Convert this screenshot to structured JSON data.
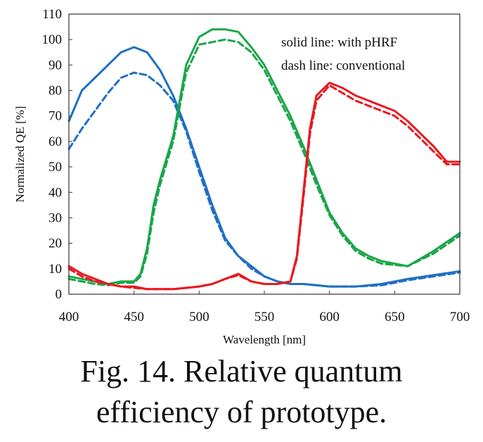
{
  "chart_data": {
    "type": "line",
    "xlabel": "Wavelength [nm]",
    "ylabel": "Normalized QE [%]",
    "xlim": [
      400,
      700
    ],
    "ylim": [
      0,
      110
    ],
    "x_ticks": [
      400,
      450,
      500,
      550,
      600,
      650,
      700
    ],
    "y_ticks": [
      0,
      10,
      20,
      30,
      40,
      50,
      60,
      70,
      80,
      90,
      100,
      110
    ],
    "grid": false,
    "annotations": [
      "solid line: with pHRF",
      "dash line: conventional"
    ],
    "colors": {
      "blue": "#1f6fc5",
      "green": "#1aa64a",
      "red": "#e8191f"
    },
    "series": [
      {
        "color": "blue",
        "style": "solid",
        "x": [
          400,
          410,
          420,
          430,
          440,
          450,
          460,
          470,
          480,
          490,
          500,
          510,
          520,
          530,
          540,
          550,
          560,
          570,
          580,
          590,
          600,
          620,
          640,
          660,
          680,
          700
        ],
        "y": [
          68,
          80,
          85,
          90,
          95,
          97,
          95,
          88,
          78,
          65,
          50,
          35,
          22,
          15,
          11,
          7,
          5,
          4,
          4,
          3.5,
          3,
          3,
          4,
          6,
          7.5,
          9
        ]
      },
      {
        "color": "blue",
        "style": "dash",
        "x": [
          400,
          410,
          420,
          430,
          440,
          450,
          460,
          470,
          480,
          490,
          500,
          510,
          520,
          530,
          540,
          550,
          560,
          570,
          580,
          590,
          600,
          620,
          640,
          660,
          680,
          700
        ],
        "y": [
          57,
          65,
          72,
          79,
          85,
          87,
          86,
          82,
          76,
          64,
          48,
          33,
          21,
          15,
          10,
          7,
          5,
          4,
          4,
          3.5,
          3,
          3,
          3.5,
          5.5,
          7,
          8.5
        ]
      },
      {
        "color": "green",
        "style": "solid",
        "x": [
          400,
          410,
          420,
          430,
          440,
          450,
          455,
          460,
          465,
          470,
          480,
          490,
          500,
          510,
          520,
          530,
          540,
          550,
          560,
          570,
          580,
          590,
          600,
          610,
          620,
          630,
          640,
          660,
          680,
          700
        ],
        "y": [
          7,
          6,
          5,
          4,
          5,
          5,
          8,
          18,
          35,
          45,
          62,
          90,
          101,
          104,
          104,
          103,
          97,
          90,
          80,
          70,
          58,
          45,
          32,
          24,
          18,
          15,
          13,
          11,
          17,
          24
        ]
      },
      {
        "color": "green",
        "style": "dash",
        "x": [
          400,
          410,
          420,
          430,
          440,
          450,
          455,
          460,
          465,
          470,
          480,
          490,
          500,
          510,
          520,
          530,
          540,
          550,
          560,
          570,
          580,
          590,
          600,
          610,
          620,
          630,
          640,
          660,
          680,
          700
        ],
        "y": [
          6,
          5,
          4,
          3.5,
          4.5,
          4.5,
          7,
          16,
          32,
          43,
          60,
          87,
          98,
          99,
          100,
          99,
          95,
          88,
          78,
          68,
          56,
          43,
          31,
          23,
          17,
          14,
          12,
          11,
          16,
          23
        ]
      },
      {
        "color": "red",
        "style": "solid",
        "x": [
          400,
          410,
          420,
          430,
          440,
          450,
          460,
          470,
          480,
          490,
          500,
          510,
          520,
          530,
          540,
          550,
          560,
          570,
          575,
          580,
          585,
          590,
          600,
          610,
          620,
          630,
          640,
          650,
          660,
          670,
          680,
          690,
          700
        ],
        "y": [
          11,
          8,
          6,
          4,
          3,
          3,
          2,
          2,
          2,
          2.5,
          3,
          4,
          6,
          8,
          5,
          4,
          4,
          5,
          15,
          40,
          65,
          78,
          83,
          81,
          78,
          76,
          74,
          72,
          68,
          63,
          58,
          52,
          52
        ]
      },
      {
        "color": "red",
        "style": "dash",
        "x": [
          400,
          410,
          420,
          430,
          440,
          450,
          460,
          470,
          480,
          490,
          500,
          510,
          520,
          530,
          540,
          550,
          560,
          570,
          575,
          580,
          585,
          590,
          600,
          610,
          620,
          630,
          640,
          650,
          660,
          670,
          680,
          690,
          700
        ],
        "y": [
          10,
          7,
          5,
          4,
          3,
          2.5,
          2,
          2,
          2,
          2.5,
          3,
          4,
          6,
          7.5,
          5,
          4,
          4,
          5,
          14,
          38,
          63,
          76,
          82,
          79,
          76,
          74,
          72,
          70,
          66,
          61,
          56,
          51,
          51
        ]
      }
    ]
  },
  "caption": {
    "line1": "Fig. 14. Relative quantum",
    "line2": "efficiency of prototype."
  }
}
